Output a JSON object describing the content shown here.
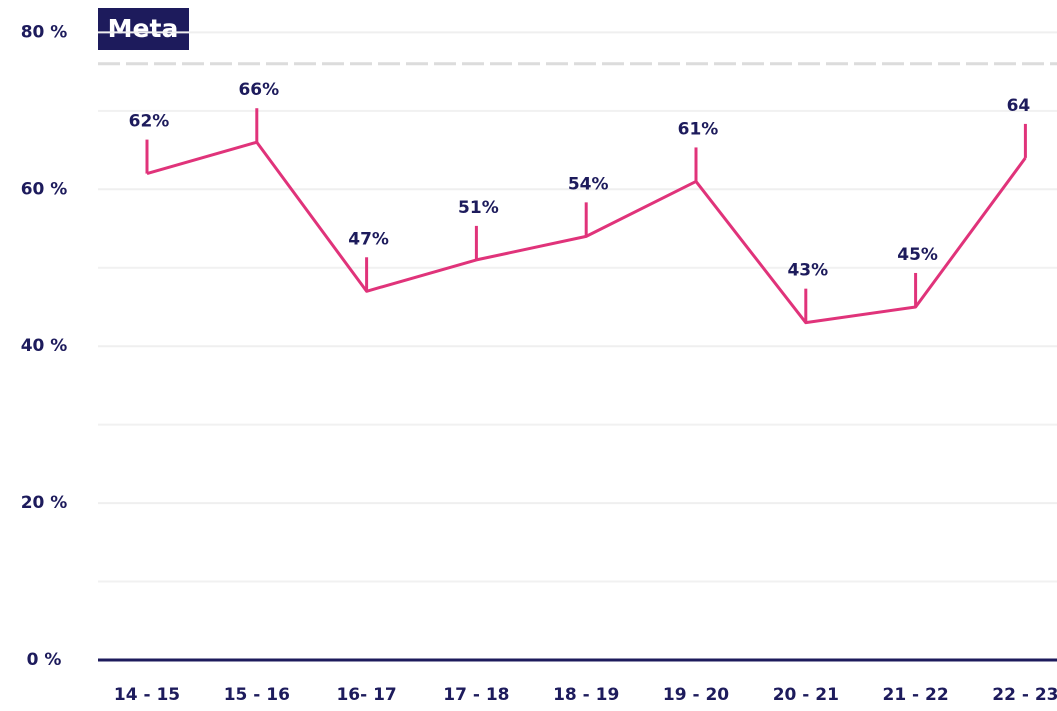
{
  "chart_data": {
    "type": "line",
    "categories": [
      "14 - 15",
      "15 - 16",
      "16- 17",
      "17 - 18",
      "18 - 19",
      "19 - 20",
      "20 - 21",
      "21 - 22",
      "22 - 23"
    ],
    "values": [
      62,
      66,
      47,
      51,
      54,
      61,
      43,
      45,
      64
    ],
    "value_labels": [
      "62%",
      "66%",
      "47%",
      "51%",
      "54%",
      "61%",
      "43%",
      "45%",
      "64"
    ],
    "color": "#e0337a",
    "ylim": [
      0,
      84
    ],
    "yticks": [
      {
        "value": 0,
        "label": "0 %"
      },
      {
        "value": 20,
        "label": "20 %"
      },
      {
        "value": 40,
        "label": "40 %"
      },
      {
        "value": 60,
        "label": "60 %"
      },
      {
        "value": 80,
        "label": "80 %"
      }
    ],
    "minor_yticks": [
      10,
      30,
      50,
      70
    ],
    "grid": true,
    "target": {
      "label": "Meta",
      "value": 76
    }
  }
}
